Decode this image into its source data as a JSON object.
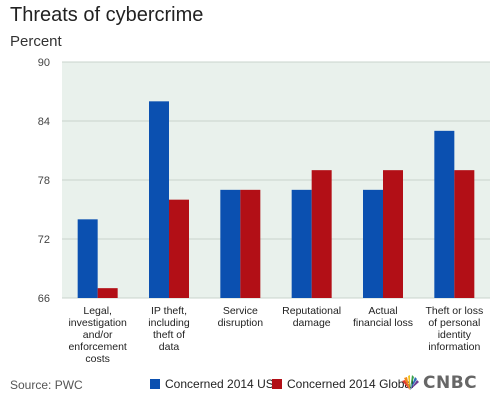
{
  "title": "Threats of cybercrime",
  "subtitle": "Percent",
  "source": "Source: PWC",
  "brand": "CNBC",
  "colors": {
    "usa": "#0b50b0",
    "global": "#b20f16",
    "plot_bg": "#e9f1ec",
    "grid": "#c9d4cd"
  },
  "legend": [
    {
      "label": "Concerned 2014 USA",
      "color": "#0b50b0"
    },
    {
      "label": "Concerned 2014 Global",
      "color": "#b20f16"
    }
  ],
  "chart_data": {
    "type": "bar",
    "categories": [
      [
        "Legal,",
        "investigation",
        "and/or",
        "enforcement",
        "costs"
      ],
      [
        "IP theft,",
        "including",
        "theft of",
        "data"
      ],
      [
        "Service",
        "disruption"
      ],
      [
        "Reputational",
        "damage"
      ],
      [
        "Actual",
        "financial loss"
      ],
      [
        "Theft or loss",
        "of personal",
        "identity",
        "information"
      ]
    ],
    "series": [
      {
        "name": "Concerned 2014 USA",
        "values": [
          74,
          86,
          77,
          77,
          77,
          83
        ]
      },
      {
        "name": "Concerned 2014 Global",
        "values": [
          67,
          76,
          77,
          79,
          79,
          79
        ]
      }
    ],
    "ylim": [
      66,
      90
    ],
    "yticks": [
      66,
      72,
      78,
      84,
      90
    ],
    "grid": true
  }
}
